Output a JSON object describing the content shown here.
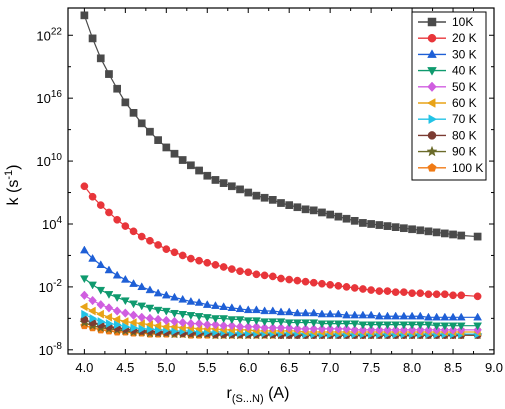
{
  "chart_data": {
    "type": "line",
    "xlabel_main": "r",
    "xlabel_sub": "(S...N)",
    "xlabel_tail": " (A)",
    "ylabel_main": "k (s",
    "ylabel_sup": "-1",
    "ylabel_tail": ")",
    "xlim": [
      3.8,
      9.0
    ],
    "ylim_log10": [
      -8.4,
      24.6
    ],
    "y_scale": "log",
    "x_ticks": [
      "4.0",
      "4.5",
      "5.0",
      "5.5",
      "6.0",
      "6.5",
      "7.0",
      "7.5",
      "8.0",
      "8.5",
      "9.0"
    ],
    "y_ticks": [
      {
        "base": "10",
        "exp": "22"
      },
      {
        "base": "10",
        "exp": "16"
      },
      {
        "base": "10",
        "exp": "10"
      },
      {
        "base": "10",
        "exp": "4"
      },
      {
        "base": "10",
        "exp": "-2"
      },
      {
        "base": "10",
        "exp": "-8"
      }
    ],
    "legend_position": "top-right",
    "x": [
      4.0,
      4.1,
      4.2,
      4.3,
      4.4,
      4.5,
      4.6,
      4.7,
      4.8,
      4.9,
      5.0,
      5.1,
      5.2,
      5.3,
      5.4,
      5.5,
      5.6,
      5.7,
      5.8,
      5.9,
      6.0,
      6.1,
      6.2,
      6.3,
      6.4,
      6.5,
      6.6,
      6.7,
      6.8,
      6.9,
      7.0,
      7.1,
      7.2,
      7.3,
      7.4,
      7.5,
      7.6,
      7.7,
      7.8,
      7.9,
      8.0,
      8.1,
      8.2,
      8.3,
      8.4,
      8.5,
      8.6,
      8.8
    ],
    "series": [
      {
        "name": "10K",
        "color": "#4a4a4a",
        "marker": "square",
        "values_log10": [
          23.9,
          21.7,
          19.8,
          18.3,
          16.9,
          15.6,
          14.6,
          13.6,
          12.8,
          12.0,
          11.3,
          10.7,
          10.1,
          9.6,
          9.1,
          8.6,
          8.2,
          7.9,
          7.6,
          7.3,
          7.0,
          6.7,
          6.5,
          6.3,
          6.0,
          5.8,
          5.6,
          5.4,
          5.3,
          5.1,
          4.9,
          4.7,
          4.5,
          4.3,
          4.1,
          4.0,
          3.9,
          3.8,
          3.7,
          3.6,
          3.5,
          3.4,
          3.3,
          3.2,
          3.1,
          3.0,
          2.9,
          2.8
        ]
      },
      {
        "name": "20 K",
        "color": "#e8353a",
        "marker": "circle",
        "values_log10": [
          7.6,
          6.6,
          5.8,
          5.1,
          4.4,
          3.8,
          3.3,
          2.8,
          2.4,
          2.0,
          1.6,
          1.3,
          1.0,
          0.7,
          0.5,
          0.3,
          0.1,
          -0.1,
          -0.3,
          -0.5,
          -0.6,
          -0.8,
          -0.9,
          -1.0,
          -1.2,
          -1.3,
          -1.4,
          -1.5,
          -1.6,
          -1.7,
          -1.8,
          -1.9,
          -2.0,
          -2.1,
          -2.2,
          -2.3,
          -2.4,
          -2.4,
          -2.5,
          -2.5,
          -2.6,
          -2.6,
          -2.7,
          -2.7,
          -2.7,
          -2.8,
          -2.8,
          -2.9
        ]
      },
      {
        "name": "30 K",
        "color": "#1e5fd6",
        "marker": "triangle",
        "values_log10": [
          1.5,
          0.7,
          0.1,
          -0.4,
          -0.9,
          -1.3,
          -1.7,
          -2.0,
          -2.3,
          -2.6,
          -2.8,
          -3.0,
          -3.2,
          -3.4,
          -3.5,
          -3.7,
          -3.8,
          -3.9,
          -4.0,
          -4.1,
          -4.2,
          -4.2,
          -4.3,
          -4.3,
          -4.4,
          -4.4,
          -4.5,
          -4.5,
          -4.5,
          -4.6,
          -4.6,
          -4.6,
          -4.7,
          -4.7,
          -4.7,
          -4.7,
          -4.8,
          -4.8,
          -4.8,
          -4.8,
          -4.8,
          -4.8,
          -4.9,
          -4.9,
          -4.9,
          -4.9,
          -4.9,
          -4.9
        ]
      },
      {
        "name": "40 K",
        "color": "#0f9a6e",
        "marker": "triangle-down",
        "values_log10": [
          -1.2,
          -1.8,
          -2.3,
          -2.7,
          -3.0,
          -3.3,
          -3.6,
          -3.8,
          -4.0,
          -4.2,
          -4.3,
          -4.5,
          -4.6,
          -4.7,
          -4.8,
          -4.9,
          -5.0,
          -5.0,
          -5.1,
          -5.1,
          -5.2,
          -5.2,
          -5.3,
          -5.3,
          -5.3,
          -5.4,
          -5.4,
          -5.4,
          -5.4,
          -5.5,
          -5.5,
          -5.5,
          -5.5,
          -5.5,
          -5.6,
          -5.6,
          -5.6,
          -5.6,
          -5.6,
          -5.6,
          -5.6,
          -5.6,
          -5.6,
          -5.7,
          -5.7,
          -5.7,
          -5.7,
          -5.7
        ]
      },
      {
        "name": "50 K",
        "color": "#d05ee0",
        "marker": "diamond",
        "values_log10": [
          -2.8,
          -3.3,
          -3.7,
          -4.0,
          -4.3,
          -4.5,
          -4.7,
          -4.9,
          -5.0,
          -5.1,
          -5.2,
          -5.3,
          -5.4,
          -5.5,
          -5.5,
          -5.6,
          -5.6,
          -5.7,
          -5.7,
          -5.8,
          -5.8,
          -5.8,
          -5.9,
          -5.9,
          -5.9,
          -5.9,
          -6.0,
          -6.0,
          -6.0,
          -6.0,
          -6.0,
          -6.0,
          -6.0,
          -6.1,
          -6.1,
          -6.1,
          -6.1,
          -6.1,
          -6.1,
          -6.1,
          -6.1,
          -6.1,
          -6.1,
          -6.1,
          -6.1,
          -6.1,
          -6.1,
          -6.1
        ]
      },
      {
        "name": "60 K",
        "color": "#e8a317",
        "marker": "triangle-left",
        "values_log10": [
          -3.9,
          -4.3,
          -4.6,
          -4.9,
          -5.1,
          -5.3,
          -5.4,
          -5.5,
          -5.6,
          -5.7,
          -5.8,
          -5.8,
          -5.9,
          -5.9,
          -6.0,
          -6.0,
          -6.0,
          -6.1,
          -6.1,
          -6.1,
          -6.1,
          -6.2,
          -6.2,
          -6.2,
          -6.2,
          -6.2,
          -6.2,
          -6.3,
          -6.3,
          -6.3,
          -6.3,
          -6.3,
          -6.3,
          -6.3,
          -6.3,
          -6.3,
          -6.3,
          -6.3,
          -6.3,
          -6.3,
          -6.3,
          -6.3,
          -6.3,
          -6.3,
          -6.3,
          -6.3,
          -6.3,
          -6.3
        ]
      },
      {
        "name": "70 K",
        "color": "#22c3e6",
        "marker": "triangle-right",
        "values_log10": [
          -4.6,
          -5.0,
          -5.3,
          -5.5,
          -5.6,
          -5.8,
          -5.9,
          -6.0,
          -6.0,
          -6.1,
          -6.1,
          -6.2,
          -6.2,
          -6.2,
          -6.3,
          -6.3,
          -6.3,
          -6.3,
          -6.4,
          -6.4,
          -6.4,
          -6.4,
          -6.4,
          -6.4,
          -6.4,
          -6.4,
          -6.4,
          -6.5,
          -6.5,
          -6.5,
          -6.5,
          -6.5,
          -6.5,
          -6.5,
          -6.5,
          -6.5,
          -6.5,
          -6.5,
          -6.5,
          -6.5,
          -6.5,
          -6.5,
          -6.5,
          -6.5,
          -6.5,
          -6.5,
          -6.5,
          -6.5
        ]
      },
      {
        "name": "80 K",
        "color": "#7b3b32",
        "marker": "circle",
        "values_log10": [
          -5.1,
          -5.4,
          -5.6,
          -5.8,
          -5.9,
          -6.0,
          -6.1,
          -6.2,
          -6.2,
          -6.3,
          -6.3,
          -6.3,
          -6.4,
          -6.4,
          -6.4,
          -6.4,
          -6.5,
          -6.5,
          -6.5,
          -6.5,
          -6.5,
          -6.5,
          -6.5,
          -6.5,
          -6.6,
          -6.6,
          -6.6,
          -6.6,
          -6.6,
          -6.6,
          -6.6,
          -6.6,
          -6.6,
          -6.6,
          -6.6,
          -6.6,
          -6.6,
          -6.6,
          -6.6,
          -6.6,
          -6.6,
          -6.6,
          -6.6,
          -6.6,
          -6.6,
          -6.6,
          -6.6,
          -6.6
        ]
      },
      {
        "name": "90 K",
        "color": "#6b6b2a",
        "marker": "star",
        "values_log10": [
          -5.4,
          -5.7,
          -5.9,
          -6.0,
          -6.1,
          -6.2,
          -6.3,
          -6.3,
          -6.4,
          -6.4,
          -6.4,
          -6.5,
          -6.5,
          -6.5,
          -6.5,
          -6.5,
          -6.6,
          -6.6,
          -6.6,
          -6.6,
          -6.6,
          -6.6,
          -6.6,
          -6.6,
          -6.6,
          -6.6,
          -6.6,
          -6.6,
          -6.6,
          -6.6,
          -6.6,
          -6.6,
          -6.6,
          -6.6,
          -6.6,
          -6.6,
          -6.6,
          -6.6,
          -6.6,
          -6.6,
          -6.6,
          -6.6,
          -6.6,
          -6.6,
          -6.6,
          -6.6,
          -6.6,
          -6.6
        ]
      },
      {
        "name": "100 K",
        "color": "#f07a14",
        "marker": "pentagon",
        "values_log10": [
          -5.7,
          -5.9,
          -6.1,
          -6.2,
          -6.3,
          -6.3,
          -6.4,
          -6.4,
          -6.5,
          -6.5,
          -6.5,
          -6.5,
          -6.5,
          -6.6,
          -6.6,
          -6.6,
          -6.6,
          -6.6,
          -6.6,
          -6.6,
          -6.6,
          -6.6,
          -6.6,
          -6.6,
          -6.6,
          -6.6,
          -6.6,
          -6.6,
          -6.6,
          -6.6,
          -6.6,
          -6.6,
          -6.6,
          -6.6,
          -6.6,
          -6.6,
          -6.6,
          -6.6,
          -6.6,
          -6.6,
          -6.6,
          -6.6,
          -6.6,
          -6.6,
          -6.6,
          -6.6,
          -6.6,
          -6.6
        ]
      }
    ]
  }
}
